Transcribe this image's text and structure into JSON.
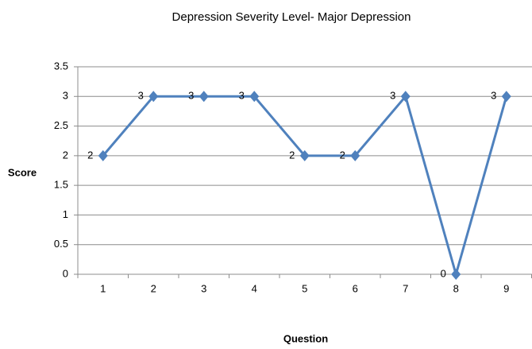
{
  "chart_data": {
    "type": "line",
    "title": "Depression Severity Level- Major Depression",
    "x_label": "Question",
    "y_label": "Score",
    "categories": [
      "1",
      "2",
      "3",
      "4",
      "5",
      "6",
      "7",
      "8",
      "9"
    ],
    "series": [
      {
        "name": "Score",
        "color": "#4f81bd",
        "values": [
          2,
          3,
          3,
          3,
          2,
          2,
          3,
          0,
          3
        ]
      }
    ],
    "ylim": [
      0,
      3.5
    ],
    "yticks": [
      0,
      0.5,
      1,
      1.5,
      2,
      2.5,
      3,
      3.5
    ],
    "grid": true,
    "legend": false
  }
}
